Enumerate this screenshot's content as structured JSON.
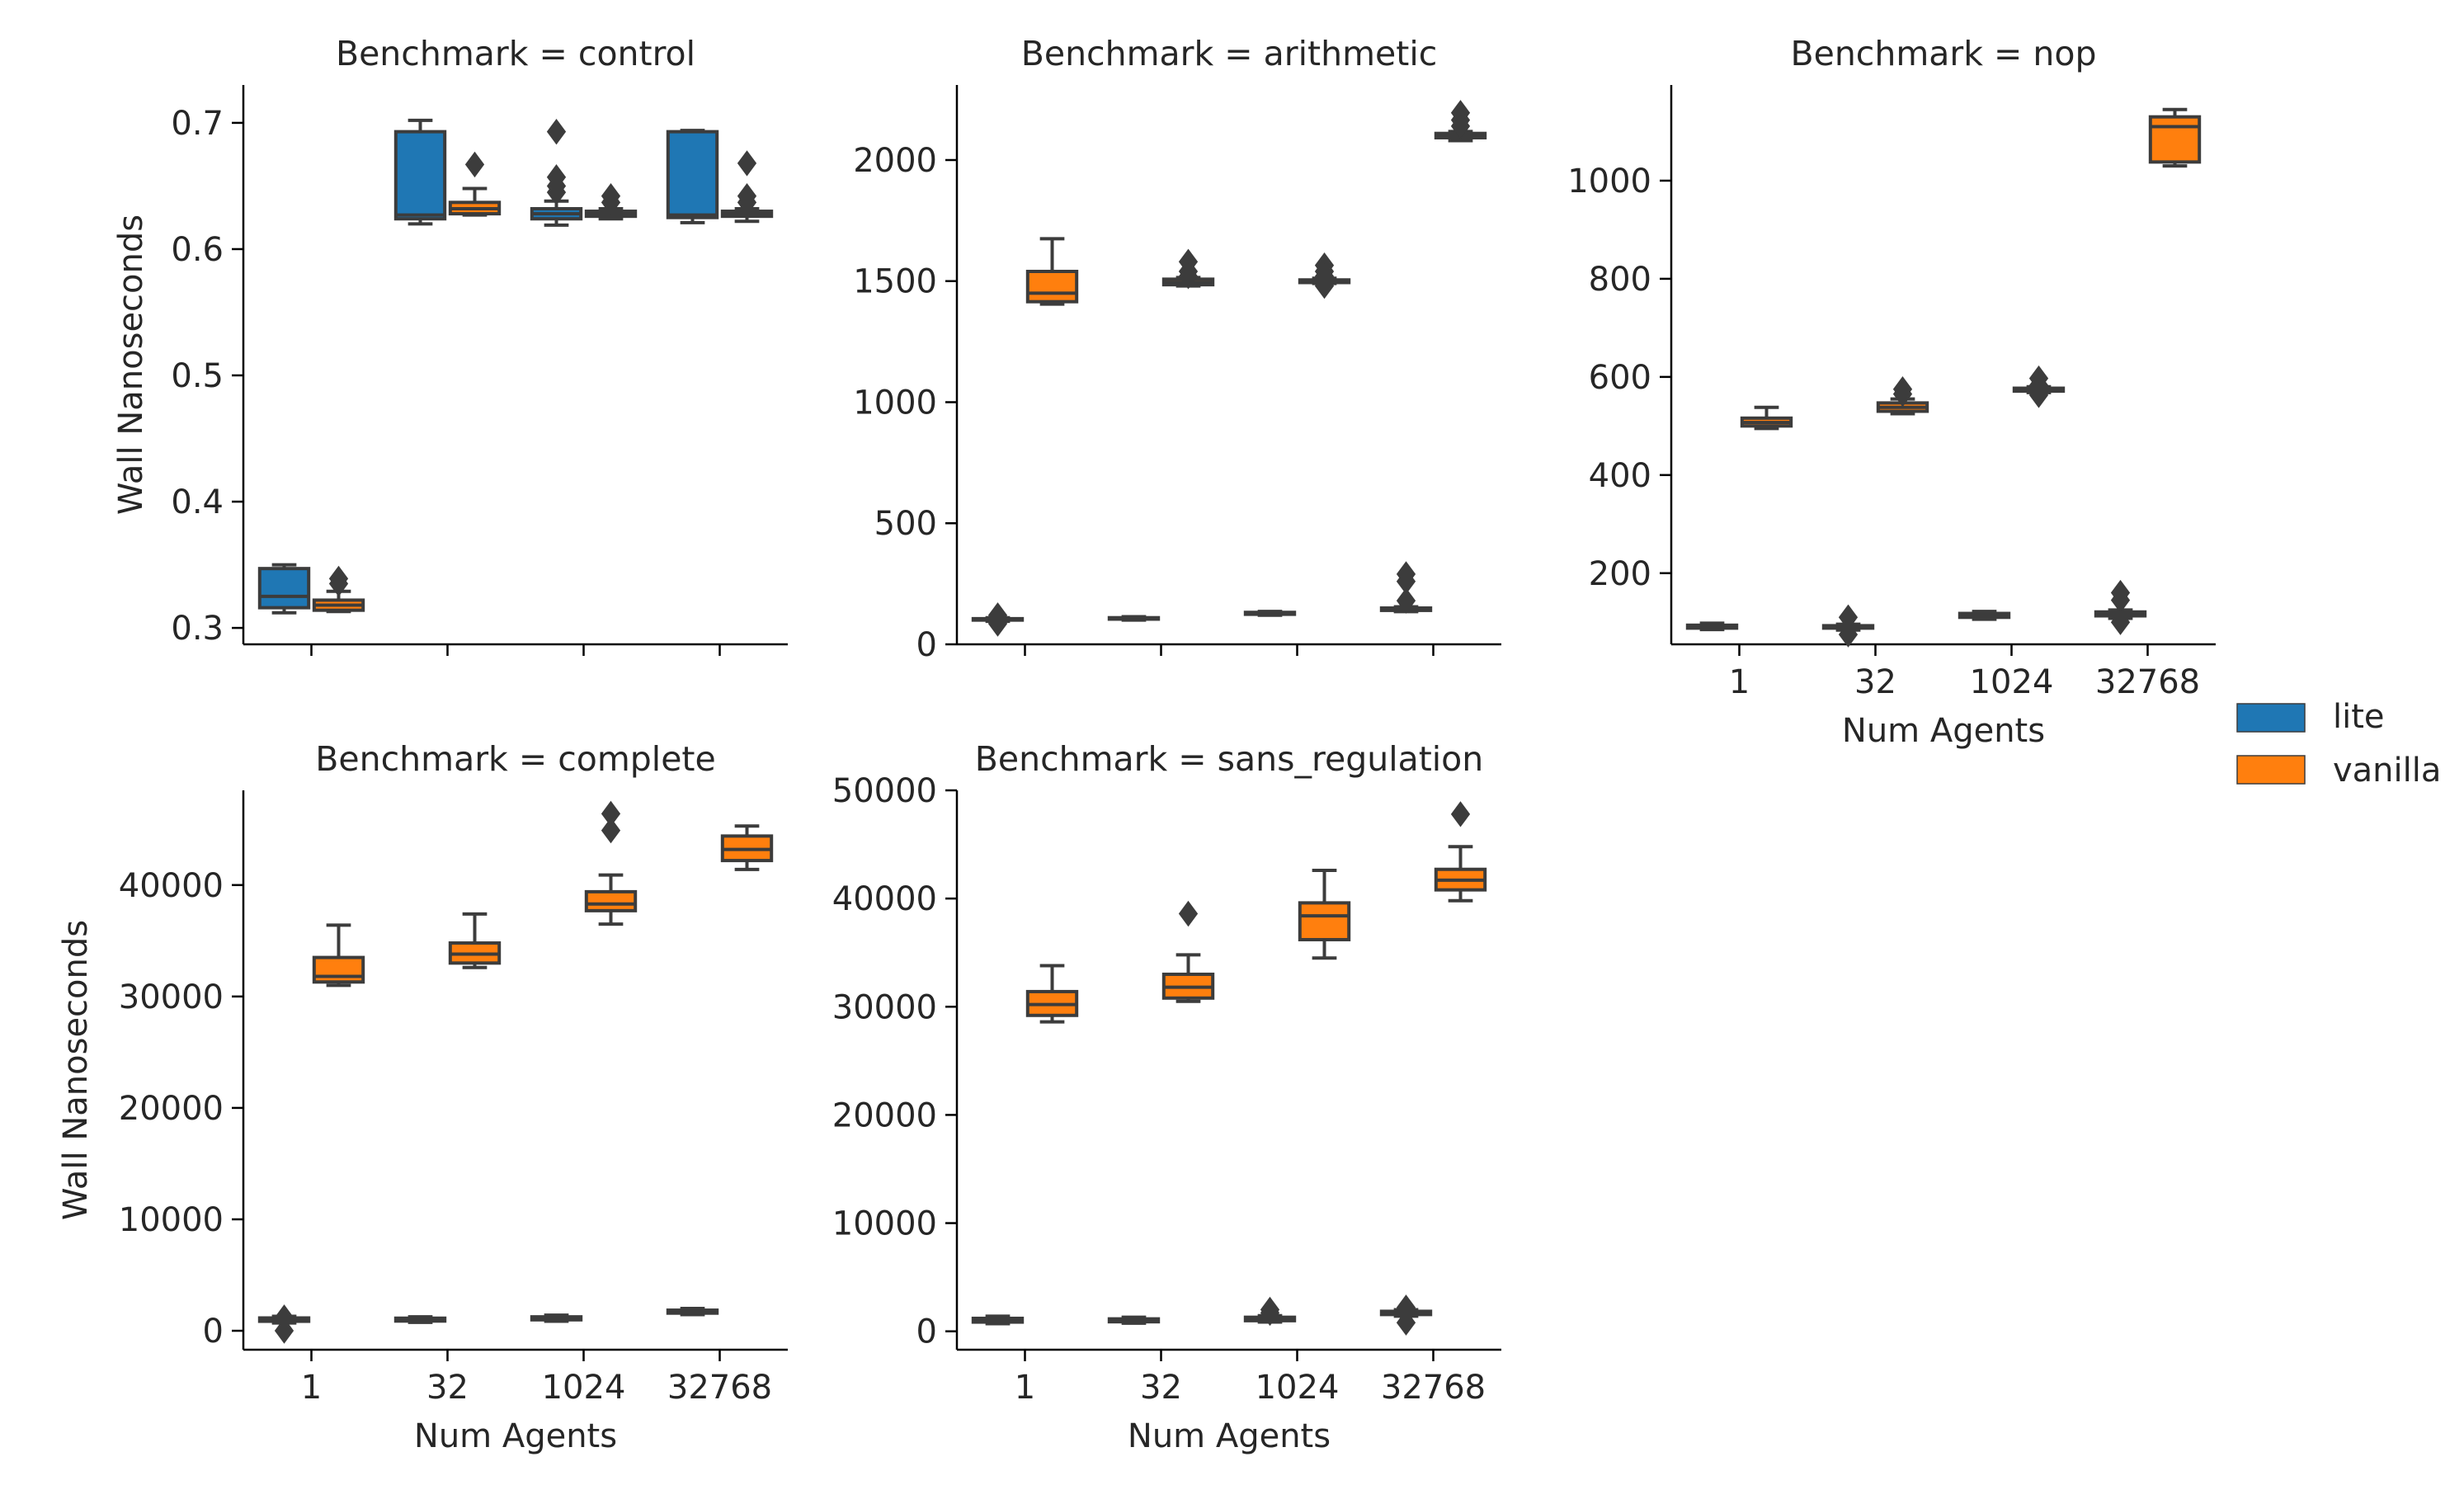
{
  "legend": {
    "placement": "right",
    "items": [
      {
        "label": "lite",
        "color": "#1f77b4"
      },
      {
        "label": "vanilla",
        "color": "#ff7f0e"
      }
    ]
  },
  "chart_data": [
    {
      "type": "box",
      "title": "Benchmark = control",
      "xlabel": "",
      "ylabel": "Wall Nanoseconds",
      "categories": [
        "1",
        "32",
        "1024",
        "32768"
      ],
      "show_x_ticklabels": false,
      "ylim": [
        0.287,
        0.73
      ],
      "yticks": [
        0.3,
        0.4,
        0.5,
        0.6,
        0.7
      ],
      "ytick_labels": [
        "0.3",
        "0.4",
        "0.5",
        "0.6",
        "0.7"
      ],
      "series": [
        {
          "name": "lite",
          "boxes": [
            {
              "min": 0.312,
              "q1": 0.316,
              "median": 0.325,
              "q3": 0.347,
              "max": 0.35,
              "outliers": []
            },
            {
              "min": 0.62,
              "q1": 0.624,
              "median": 0.627,
              "q3": 0.693,
              "max": 0.702,
              "outliers": []
            },
            {
              "min": 0.619,
              "q1": 0.624,
              "median": 0.628,
              "q3": 0.632,
              "max": 0.638,
              "outliers": [
                0.693,
                0.657,
                0.65,
                0.645
              ]
            },
            {
              "min": 0.621,
              "q1": 0.625,
              "median": 0.627,
              "q3": 0.693,
              "max": 0.694,
              "outliers": []
            }
          ]
        },
        {
          "name": "vanilla",
          "boxes": [
            {
              "min": 0.313,
              "q1": 0.314,
              "median": 0.318,
              "q3": 0.322,
              "max": 0.329,
              "outliers": [
                0.339,
                0.335
              ]
            },
            {
              "min": 0.627,
              "q1": 0.628,
              "median": 0.632,
              "q3": 0.637,
              "max": 0.648,
              "outliers": [
                0.667
              ]
            },
            {
              "min": 0.624,
              "q1": 0.626,
              "median": 0.628,
              "q3": 0.63,
              "max": 0.632,
              "outliers": [
                0.642,
                0.637
              ]
            },
            {
              "min": 0.622,
              "q1": 0.626,
              "median": 0.628,
              "q3": 0.63,
              "max": 0.632,
              "outliers": [
                0.668,
                0.642,
                0.637
              ]
            }
          ]
        }
      ]
    },
    {
      "type": "box",
      "title": "Benchmark = arithmetic",
      "xlabel": "",
      "ylabel": "",
      "categories": [
        "1",
        "32",
        "1024",
        "32768"
      ],
      "show_x_ticklabels": false,
      "ylim": [
        0,
        2310
      ],
      "yticks": [
        0,
        500,
        1000,
        1500,
        2000
      ],
      "ytick_labels": [
        "0",
        "500",
        "1000",
        "1500",
        "2000"
      ],
      "series": [
        {
          "name": "lite",
          "boxes": [
            {
              "min": 95,
              "q1": 100,
              "median": 103,
              "q3": 106,
              "max": 110,
              "outliers": [
                85,
                120
              ]
            },
            {
              "min": 100,
              "q1": 104,
              "median": 107,
              "q3": 110,
              "max": 114,
              "outliers": []
            },
            {
              "min": 120,
              "q1": 124,
              "median": 128,
              "q3": 132,
              "max": 136,
              "outliers": []
            },
            {
              "min": 135,
              "q1": 140,
              "median": 145,
              "q3": 150,
              "max": 155,
              "outliers": [
                290,
                260,
                180
              ]
            }
          ]
        },
        {
          "name": "vanilla",
          "boxes": [
            {
              "min": 1405,
              "q1": 1415,
              "median": 1450,
              "q3": 1540,
              "max": 1675,
              "outliers": []
            },
            {
              "min": 1480,
              "q1": 1485,
              "median": 1495,
              "q3": 1508,
              "max": 1515,
              "outliers": [
                1580,
                1540,
                1520
              ]
            },
            {
              "min": 1490,
              "q1": 1494,
              "median": 1498,
              "q3": 1505,
              "max": 1512,
              "outliers": [
                1565,
                1540,
                1520,
                1480
              ]
            },
            {
              "min": 2080,
              "q1": 2092,
              "median": 2100,
              "q3": 2110,
              "max": 2118,
              "outliers": [
                2195,
                2165,
                2140
              ]
            }
          ]
        }
      ]
    },
    {
      "type": "box",
      "title": "Benchmark = nop",
      "xlabel": "Num Agents",
      "ylabel": "",
      "categories": [
        "1",
        "32",
        "1024",
        "32768"
      ],
      "show_x_ticklabels": true,
      "ylim": [
        55,
        1195
      ],
      "yticks": [
        200,
        400,
        600,
        800,
        1000
      ],
      "ytick_labels": [
        "200",
        "400",
        "600",
        "800",
        "1000"
      ],
      "series": [
        {
          "name": "lite",
          "boxes": [
            {
              "min": 85,
              "q1": 88,
              "median": 91,
              "q3": 94,
              "max": 98,
              "outliers": []
            },
            {
              "min": 84,
              "q1": 88,
              "median": 90,
              "q3": 93,
              "max": 96,
              "outliers": [
                110,
                75
              ]
            },
            {
              "min": 106,
              "q1": 110,
              "median": 114,
              "q3": 118,
              "max": 122,
              "outliers": []
            },
            {
              "min": 108,
              "q1": 113,
              "median": 117,
              "q3": 121,
              "max": 125,
              "outliers": [
                160,
                145,
                100
              ]
            }
          ]
        },
        {
          "name": "vanilla",
          "boxes": [
            {
              "min": 495,
              "q1": 500,
              "median": 507,
              "q3": 516,
              "max": 538,
              "outliers": []
            },
            {
              "min": 525,
              "q1": 530,
              "median": 538,
              "q3": 547,
              "max": 555,
              "outliers": [
                575,
                565
              ]
            },
            {
              "min": 568,
              "q1": 571,
              "median": 574,
              "q3": 577,
              "max": 580,
              "outliers": [
                597,
                583,
                563
              ]
            },
            {
              "min": 1030,
              "q1": 1038,
              "median": 1110,
              "q3": 1130,
              "max": 1145,
              "outliers": []
            }
          ]
        }
      ]
    },
    {
      "type": "box",
      "title": "Benchmark = complete",
      "xlabel": "Num Agents",
      "ylabel": "Wall Nanoseconds",
      "categories": [
        "1",
        "32",
        "1024",
        "32768"
      ],
      "show_x_ticklabels": true,
      "ylim": [
        -1700,
        48500
      ],
      "yticks": [
        0,
        10000,
        20000,
        30000,
        40000
      ],
      "ytick_labels": [
        "0",
        "10000",
        "20000",
        "30000",
        "40000"
      ],
      "series": [
        {
          "name": "lite",
          "boxes": [
            {
              "min": 700,
              "q1": 850,
              "median": 1000,
              "q3": 1150,
              "max": 1300,
              "outliers": [
                1200,
                0
              ]
            },
            {
              "min": 750,
              "q1": 870,
              "median": 1000,
              "q3": 1130,
              "max": 1250,
              "outliers": []
            },
            {
              "min": 850,
              "q1": 980,
              "median": 1100,
              "q3": 1250,
              "max": 1400,
              "outliers": []
            },
            {
              "min": 1450,
              "q1": 1580,
              "median": 1700,
              "q3": 1850,
              "max": 2000,
              "outliers": []
            }
          ]
        },
        {
          "name": "vanilla",
          "boxes": [
            {
              "min": 31000,
              "q1": 31300,
              "median": 31800,
              "q3": 33500,
              "max": 36400,
              "outliers": []
            },
            {
              "min": 32600,
              "q1": 33000,
              "median": 33800,
              "q3": 34800,
              "max": 37400,
              "outliers": []
            },
            {
              "min": 36500,
              "q1": 37700,
              "median": 38300,
              "q3": 39400,
              "max": 40900,
              "outliers": [
                46400,
                44900
              ]
            },
            {
              "min": 41400,
              "q1": 42200,
              "median": 43200,
              "q3": 44400,
              "max": 45300,
              "outliers": []
            }
          ]
        }
      ]
    },
    {
      "type": "box",
      "title": "Benchmark = sans_regulation",
      "xlabel": "Num Agents",
      "ylabel": "",
      "categories": [
        "1",
        "32",
        "1024",
        "32768"
      ],
      "show_x_ticklabels": true,
      "ylim": [
        -1700,
        50000
      ],
      "yticks": [
        0,
        10000,
        20000,
        30000,
        40000,
        50000
      ],
      "ytick_labels": [
        "0",
        "10000",
        "20000",
        "30000",
        "40000",
        "50000"
      ],
      "series": [
        {
          "name": "lite",
          "boxes": [
            {
              "min": 700,
              "q1": 850,
              "median": 1000,
              "q3": 1200,
              "max": 1400,
              "outliers": []
            },
            {
              "min": 750,
              "q1": 880,
              "median": 1000,
              "q3": 1150,
              "max": 1300,
              "outliers": []
            },
            {
              "min": 850,
              "q1": 980,
              "median": 1150,
              "q3": 1300,
              "max": 1450,
              "outliers": [
                2000,
                1700
              ]
            },
            {
              "min": 1400,
              "q1": 1550,
              "median": 1700,
              "q3": 1850,
              "max": 2000,
              "outliers": [
                2200,
                800
              ]
            }
          ]
        },
        {
          "name": "vanilla",
          "boxes": [
            {
              "min": 28600,
              "q1": 29200,
              "median": 30200,
              "q3": 31400,
              "max": 33800,
              "outliers": []
            },
            {
              "min": 30500,
              "q1": 30800,
              "median": 31800,
              "q3": 33000,
              "max": 34800,
              "outliers": [
                38600
              ]
            },
            {
              "min": 34500,
              "q1": 36200,
              "median": 38400,
              "q3": 39600,
              "max": 42600,
              "outliers": []
            },
            {
              "min": 39800,
              "q1": 40800,
              "median": 41700,
              "q3": 42700,
              "max": 44800,
              "outliers": [
                47800
              ]
            }
          ]
        }
      ]
    }
  ]
}
